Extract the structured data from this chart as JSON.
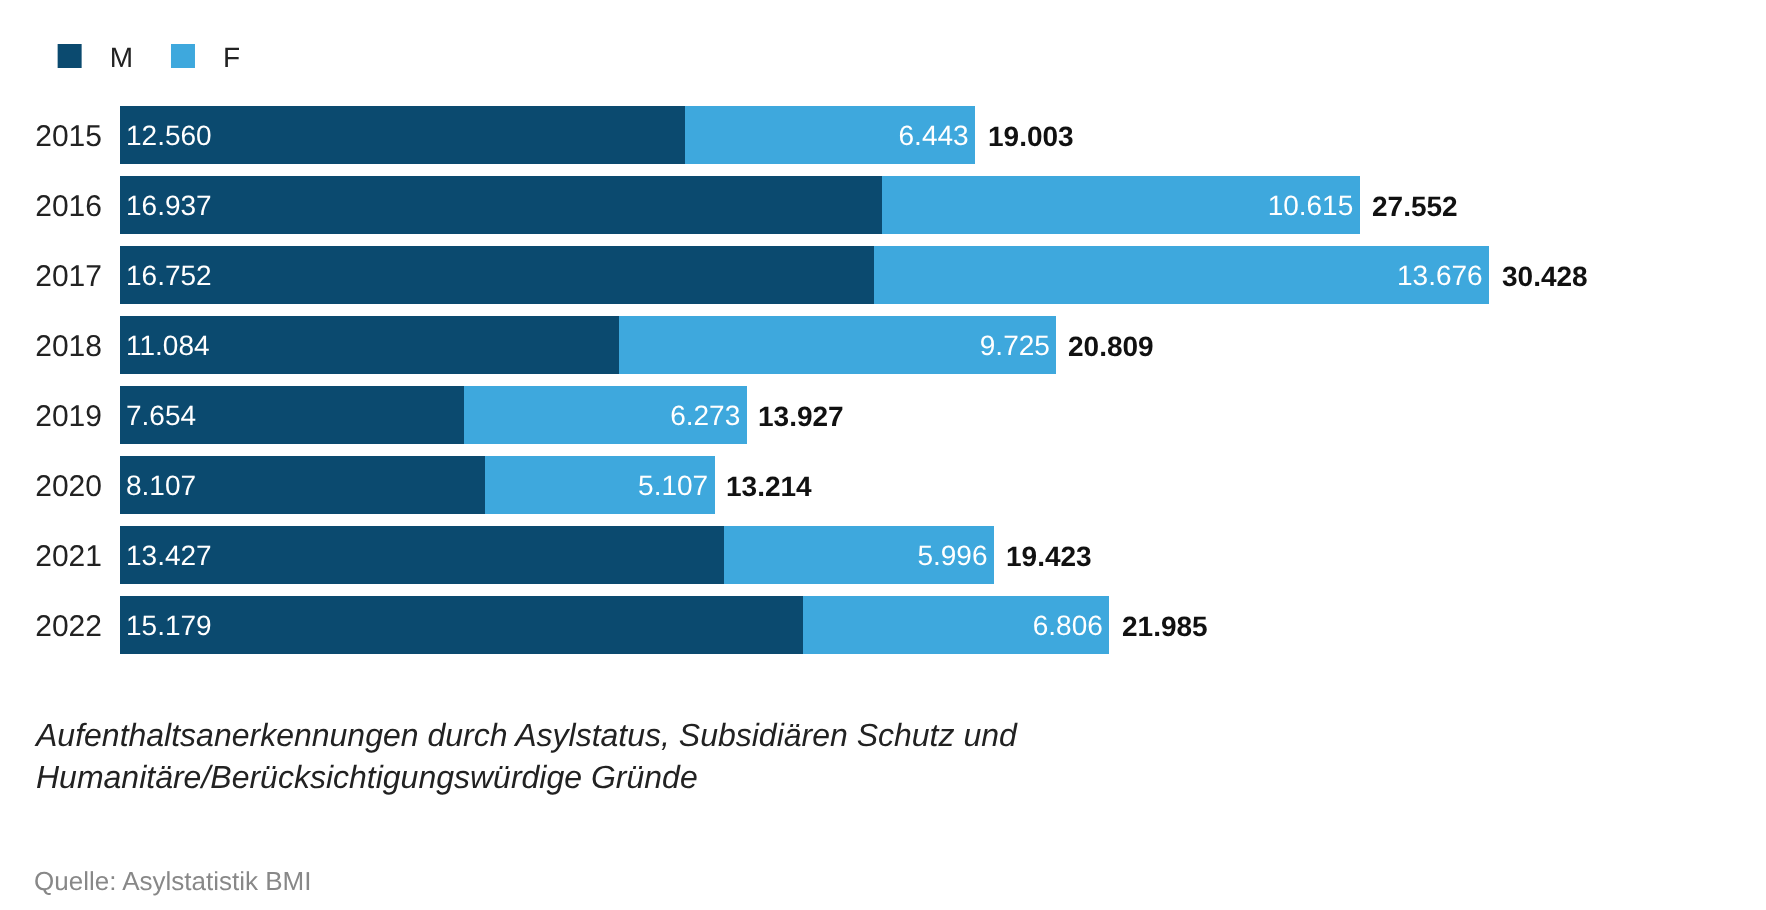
{
  "chart_data": {
    "type": "bar",
    "orientation": "horizontal",
    "stacked": true,
    "categories": [
      "2015",
      "2016",
      "2017",
      "2018",
      "2019",
      "2020",
      "2021",
      "2022"
    ],
    "series": [
      {
        "name": "M",
        "color": "#0b4a6f",
        "values": [
          12560,
          16937,
          16752,
          11084,
          7654,
          8107,
          13427,
          15179
        ],
        "value_labels": [
          "12.560",
          "16.937",
          "16.752",
          "11.084",
          "7.654",
          "8.107",
          "13.427",
          "15.179"
        ]
      },
      {
        "name": "F",
        "color": "#3ea8dd",
        "values": [
          6443,
          10615,
          13676,
          9725,
          6273,
          5107,
          5996,
          6806
        ],
        "value_labels": [
          "6.443",
          "10.615",
          "13.676",
          "9.725",
          "6.273",
          "5.107",
          "5.996",
          "6.806"
        ]
      }
    ],
    "totals": [
      "19.003",
      "27.552",
      "30.428",
      "20.809",
      "13.927",
      "13.214",
      "19.423",
      "21.985"
    ],
    "annotations": [
      "Aufenthaltsanerkennungen durch Asylstatus, Subsidiären Schutz und\nHumanitäre/Berücksichtigungswürdige Gründe",
      "Quelle: Asylstatistik BMI"
    ],
    "legend": "top left",
    "tick_labels": "y"
  }
}
